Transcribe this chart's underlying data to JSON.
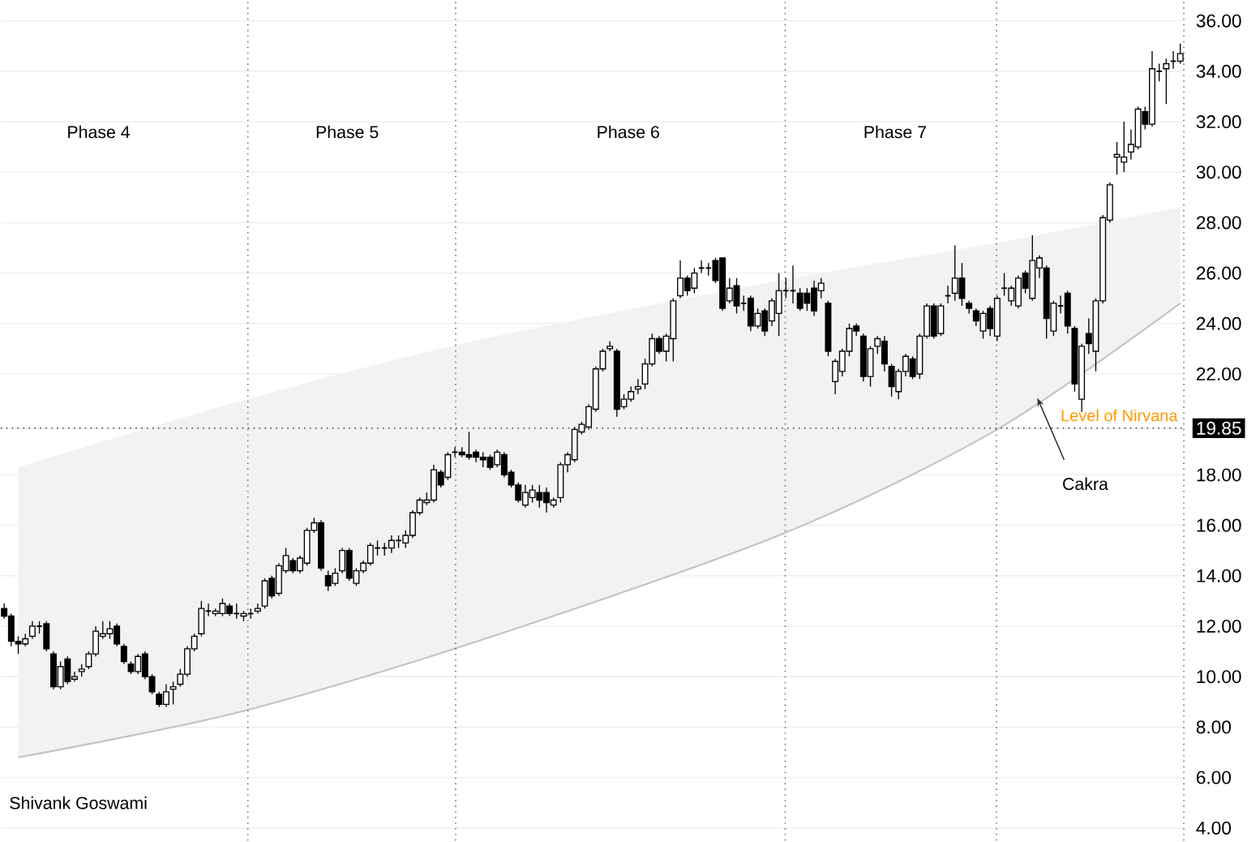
{
  "chart_data": {
    "type": "candlestick",
    "categories": [
      null,
      null,
      null,
      null,
      null,
      null,
      null,
      null,
      null,
      null,
      null,
      null,
      null,
      null,
      null,
      null,
      null,
      null,
      null,
      null,
      null,
      null,
      null,
      null,
      null,
      null,
      null,
      null,
      null,
      null,
      null,
      null,
      null,
      null,
      null,
      null,
      null,
      null,
      null,
      null,
      null,
      null,
      null,
      null,
      null,
      null,
      null,
      null,
      null,
      null,
      null,
      null,
      null,
      null,
      null,
      null,
      null,
      null,
      null,
      null,
      null,
      null,
      null,
      null,
      null,
      null,
      null,
      null,
      null,
      null,
      null,
      null,
      null,
      null,
      null,
      null,
      null,
      null,
      null,
      null,
      null,
      null,
      null,
      null,
      null,
      null,
      null,
      null,
      null,
      null,
      null,
      null,
      null,
      null,
      null,
      null,
      null,
      null,
      null,
      null,
      null,
      null,
      null,
      null,
      null,
      null,
      null,
      null,
      null,
      null,
      null,
      null,
      null,
      null,
      null,
      null,
      null,
      null,
      null,
      null,
      null,
      null,
      null,
      null,
      null,
      null,
      null,
      null,
      null,
      null,
      null,
      null,
      null,
      null,
      null,
      null,
      null,
      null,
      null,
      null,
      null,
      null,
      null,
      null,
      null,
      null,
      null,
      null,
      null,
      null,
      null,
      null,
      null,
      null,
      null,
      null,
      null,
      null,
      null,
      null,
      null,
      null,
      null,
      null,
      null,
      null,
      null,
      null
    ],
    "ohlc": [
      [
        12.7,
        12.9,
        12.3,
        12.4
      ],
      [
        12.4,
        12.5,
        11.2,
        11.4
      ],
      [
        11.4,
        11.6,
        10.9,
        11.3
      ],
      [
        11.3,
        11.7,
        11.2,
        11.5
      ],
      [
        11.6,
        12.2,
        11.5,
        12.0
      ],
      [
        12.0,
        12.2,
        11.7,
        12.0
      ],
      [
        12.1,
        12.2,
        11.0,
        11.1
      ],
      [
        10.9,
        11.0,
        9.5,
        9.6
      ],
      [
        9.6,
        10.6,
        9.5,
        10.4
      ],
      [
        10.7,
        10.8,
        9.7,
        9.8
      ],
      [
        9.9,
        10.2,
        9.8,
        10.0
      ],
      [
        10.2,
        10.5,
        10.0,
        10.3
      ],
      [
        10.4,
        11.0,
        10.3,
        10.9
      ],
      [
        10.9,
        12.0,
        10.8,
        11.8
      ],
      [
        11.6,
        12.2,
        11.5,
        11.7
      ],
      [
        11.7,
        12.2,
        11.5,
        11.9
      ],
      [
        12.0,
        12.1,
        11.2,
        11.3
      ],
      [
        11.2,
        11.3,
        10.5,
        10.6
      ],
      [
        10.5,
        10.6,
        10.1,
        10.2
      ],
      [
        10.2,
        10.9,
        10.1,
        10.8
      ],
      [
        10.9,
        11.0,
        9.9,
        10.0
      ],
      [
        10.0,
        10.1,
        9.3,
        9.4
      ],
      [
        9.3,
        9.4,
        8.8,
        8.9
      ],
      [
        8.9,
        9.7,
        8.8,
        9.4
      ],
      [
        9.5,
        9.8,
        8.9,
        9.6
      ],
      [
        9.7,
        10.3,
        9.6,
        10.1
      ],
      [
        10.1,
        11.2,
        10.0,
        11.1
      ],
      [
        11.1,
        11.7,
        11.0,
        11.6
      ],
      [
        11.7,
        13.0,
        11.6,
        12.7
      ],
      [
        12.6,
        12.9,
        12.4,
        12.6
      ],
      [
        12.5,
        12.7,
        12.4,
        12.6
      ],
      [
        12.5,
        13.1,
        12.4,
        12.9
      ],
      [
        12.8,
        12.9,
        12.4,
        12.5
      ],
      [
        12.5,
        12.9,
        12.3,
        12.5
      ],
      [
        12.4,
        12.6,
        12.2,
        12.5
      ],
      [
        12.5,
        12.7,
        12.3,
        12.5
      ],
      [
        12.6,
        12.9,
        12.5,
        12.7
      ],
      [
        12.8,
        13.9,
        12.7,
        13.8
      ],
      [
        13.9,
        14.0,
        13.1,
        13.2
      ],
      [
        13.3,
        14.5,
        13.2,
        14.4
      ],
      [
        14.2,
        15.1,
        14.1,
        14.8
      ],
      [
        14.6,
        14.7,
        14.1,
        14.2
      ],
      [
        14.2,
        14.8,
        14.1,
        14.7
      ],
      [
        14.5,
        15.9,
        14.4,
        15.8
      ],
      [
        15.8,
        16.3,
        15.7,
        16.1
      ],
      [
        16.1,
        16.2,
        14.2,
        14.3
      ],
      [
        14.0,
        14.2,
        13.4,
        13.6
      ],
      [
        13.7,
        14.3,
        13.6,
        14.1
      ],
      [
        14.2,
        15.1,
        14.1,
        15.0
      ],
      [
        15.0,
        15.1,
        13.8,
        13.9
      ],
      [
        13.7,
        14.3,
        13.6,
        14.2
      ],
      [
        14.2,
        14.6,
        14.1,
        14.5
      ],
      [
        14.5,
        15.3,
        14.4,
        15.2
      ],
      [
        15.1,
        15.4,
        14.8,
        15.1
      ],
      [
        15.1,
        15.3,
        14.8,
        15.1
      ],
      [
        15.1,
        15.6,
        14.9,
        15.4
      ],
      [
        15.4,
        15.6,
        15.1,
        15.4
      ],
      [
        15.3,
        15.8,
        15.1,
        15.6
      ],
      [
        15.6,
        16.6,
        15.5,
        16.5
      ],
      [
        16.5,
        17.1,
        16.4,
        17.0
      ],
      [
        16.9,
        17.3,
        16.8,
        17.0
      ],
      [
        17.0,
        18.4,
        16.9,
        18.2
      ],
      [
        18.1,
        18.2,
        17.5,
        17.6
      ],
      [
        17.9,
        18.9,
        17.8,
        18.8
      ],
      [
        18.9,
        19.1,
        18.7,
        18.9
      ],
      [
        18.9,
        19.1,
        18.7,
        18.8
      ],
      [
        18.8,
        19.7,
        18.6,
        18.7
      ],
      [
        18.9,
        19.0,
        18.5,
        18.7
      ],
      [
        18.7,
        18.9,
        18.3,
        18.6
      ],
      [
        18.7,
        18.8,
        18.2,
        18.3
      ],
      [
        18.4,
        19.0,
        18.3,
        18.9
      ],
      [
        18.8,
        18.9,
        17.9,
        18.0
      ],
      [
        18.1,
        18.2,
        17.5,
        17.6
      ],
      [
        17.6,
        17.7,
        16.9,
        17.0
      ],
      [
        16.8,
        17.6,
        16.7,
        17.3
      ],
      [
        17.1,
        17.6,
        16.9,
        17.4
      ],
      [
        17.3,
        17.6,
        16.7,
        17.0
      ],
      [
        17.3,
        17.5,
        16.5,
        16.9
      ],
      [
        16.8,
        17.1,
        16.7,
        17.0
      ],
      [
        17.1,
        18.5,
        16.9,
        18.4
      ],
      [
        18.4,
        18.9,
        18.1,
        18.8
      ],
      [
        18.6,
        19.9,
        18.5,
        19.8
      ],
      [
        19.7,
        20.1,
        19.6,
        20.0
      ],
      [
        19.9,
        20.8,
        19.8,
        20.7
      ],
      [
        20.6,
        22.3,
        20.5,
        22.2
      ],
      [
        22.2,
        23.0,
        22.1,
        22.9
      ],
      [
        23.0,
        23.3,
        22.9,
        23.1
      ],
      [
        22.9,
        23.0,
        20.3,
        20.6
      ],
      [
        20.7,
        21.2,
        20.6,
        21.0
      ],
      [
        21.0,
        21.5,
        20.9,
        21.3
      ],
      [
        21.4,
        21.8,
        21.2,
        21.5
      ],
      [
        21.6,
        22.6,
        21.4,
        22.4
      ],
      [
        22.4,
        23.6,
        22.3,
        23.4
      ],
      [
        23.4,
        23.5,
        22.8,
        22.9
      ],
      [
        22.9,
        23.6,
        22.5,
        23.5
      ],
      [
        23.4,
        25.0,
        22.5,
        24.9
      ],
      [
        25.1,
        26.5,
        25.0,
        25.8
      ],
      [
        25.8,
        25.9,
        25.1,
        25.3
      ],
      [
        25.4,
        26.2,
        25.2,
        26.0
      ],
      [
        26.2,
        26.5,
        26.0,
        26.2
      ],
      [
        26.2,
        26.4,
        25.9,
        26.2
      ],
      [
        26.5,
        26.6,
        25.6,
        25.7
      ],
      [
        26.6,
        26.6,
        24.5,
        24.6
      ],
      [
        24.9,
        25.8,
        24.8,
        25.4
      ],
      [
        25.5,
        25.8,
        24.4,
        24.7
      ],
      [
        24.8,
        25.1,
        24.5,
        24.8
      ],
      [
        25.0,
        25.1,
        23.7,
        23.9
      ],
      [
        23.9,
        24.6,
        23.8,
        24.4
      ],
      [
        24.5,
        24.6,
        23.5,
        23.7
      ],
      [
        24.1,
        25.0,
        23.9,
        24.9
      ],
      [
        24.4,
        26.0,
        23.5,
        25.3
      ],
      [
        25.3,
        25.8,
        25.0,
        25.3
      ],
      [
        25.3,
        26.3,
        24.8,
        25.3
      ],
      [
        25.2,
        25.4,
        24.5,
        24.6
      ],
      [
        25.2,
        25.4,
        24.5,
        24.8
      ],
      [
        25.4,
        25.7,
        24.3,
        24.5
      ],
      [
        25.3,
        25.8,
        25.0,
        25.6
      ],
      [
        24.8,
        24.9,
        22.7,
        22.9
      ],
      [
        21.7,
        22.6,
        21.2,
        22.5
      ],
      [
        22.1,
        23.0,
        21.9,
        22.9
      ],
      [
        22.9,
        24.0,
        22.7,
        23.8
      ],
      [
        23.9,
        24.0,
        23.5,
        23.7
      ],
      [
        23.5,
        23.6,
        21.7,
        21.9
      ],
      [
        21.9,
        23.1,
        21.5,
        23.0
      ],
      [
        23.1,
        23.5,
        22.8,
        23.4
      ],
      [
        23.3,
        23.5,
        22.1,
        22.4
      ],
      [
        22.3,
        22.4,
        21.1,
        21.5
      ],
      [
        21.3,
        22.2,
        21.0,
        22.1
      ],
      [
        22.1,
        22.8,
        21.9,
        22.7
      ],
      [
        22.6,
        22.7,
        21.8,
        21.9
      ],
      [
        22.0,
        23.6,
        21.8,
        23.5
      ],
      [
        23.5,
        24.8,
        23.4,
        24.7
      ],
      [
        24.7,
        24.8,
        23.4,
        23.5
      ],
      [
        23.6,
        24.8,
        23.5,
        24.7
      ],
      [
        25.1,
        25.5,
        24.8,
        25.1
      ],
      [
        25.2,
        27.1,
        24.9,
        25.8
      ],
      [
        25.8,
        26.4,
        24.7,
        25.0
      ],
      [
        24.8,
        24.9,
        24.4,
        24.6
      ],
      [
        24.5,
        24.6,
        23.9,
        24.1
      ],
      [
        23.7,
        24.5,
        23.4,
        24.4
      ],
      [
        24.6,
        24.7,
        23.5,
        23.8
      ],
      [
        23.5,
        25.1,
        23.3,
        25.0
      ],
      [
        25.4,
        26.0,
        25.1,
        25.4
      ],
      [
        24.9,
        25.5,
        24.7,
        25.4
      ],
      [
        24.7,
        25.9,
        24.6,
        25.8
      ],
      [
        26.0,
        26.1,
        25.2,
        25.4
      ],
      [
        25.0,
        27.5,
        24.9,
        26.5
      ],
      [
        26.2,
        26.7,
        25.8,
        26.6
      ],
      [
        26.2,
        26.3,
        23.4,
        24.2
      ],
      [
        23.7,
        24.9,
        23.5,
        24.8
      ],
      [
        24.7,
        25.1,
        24.4,
        24.7
      ],
      [
        25.2,
        25.3,
        23.6,
        23.9
      ],
      [
        23.8,
        23.9,
        21.3,
        21.6
      ],
      [
        21.0,
        23.2,
        20.5,
        23.1
      ],
      [
        23.6,
        24.2,
        22.8,
        23.2
      ],
      [
        22.9,
        25.0,
        22.1,
        24.9
      ],
      [
        24.9,
        28.3,
        24.8,
        28.2
      ],
      [
        28.1,
        29.6,
        28.0,
        29.5
      ],
      [
        30.6,
        31.2,
        29.9,
        30.7
      ],
      [
        30.4,
        32.0,
        30.0,
        30.6
      ],
      [
        30.8,
        31.7,
        30.5,
        31.1
      ],
      [
        31.0,
        32.6,
        30.9,
        32.5
      ],
      [
        32.4,
        32.6,
        31.7,
        31.9
      ],
      [
        31.9,
        34.8,
        31.8,
        34.1
      ],
      [
        34.0,
        34.3,
        33.6,
        34.0
      ],
      [
        34.1,
        34.5,
        32.7,
        34.3
      ],
      [
        34.4,
        34.8,
        34.1,
        34.4
      ],
      [
        34.4,
        35.1,
        34.3,
        34.7
      ]
    ],
    "series": [
      {
        "type": "line",
        "color": "#c4c4c4",
        "values": [
          null,
          null,
          6.8,
          null,
          null,
          null,
          null,
          null,
          null,
          null,
          null,
          null,
          null,
          null,
          null,
          null,
          null,
          null,
          null,
          null,
          null,
          null,
          null,
          null,
          null,
          null,
          null,
          null,
          null,
          null,
          null,
          null,
          8.5,
          null,
          null,
          null,
          null,
          null,
          null,
          null,
          null,
          null,
          null,
          null,
          null,
          null,
          null,
          null,
          null,
          null,
          null,
          null,
          null,
          null,
          null,
          null,
          null,
          null,
          null,
          null,
          null,
          null,
          null,
          null,
          null,
          11.2,
          null,
          null,
          null,
          null,
          null,
          null,
          null,
          null,
          null,
          null,
          null,
          null,
          null,
          null,
          null,
          null,
          null,
          null,
          null,
          null,
          null,
          null,
          null,
          null,
          null,
          null,
          null,
          null,
          null,
          null,
          null,
          null,
          null,
          null,
          null,
          null,
          null,
          null,
          null,
          null,
          null,
          null,
          null,
          null,
          15.6,
          null,
          null,
          null,
          null,
          null,
          null,
          null,
          null,
          null,
          null,
          null,
          null,
          null,
          null,
          null,
          null,
          null,
          null,
          null,
          null,
          null,
          null,
          null,
          null,
          null,
          null,
          null,
          null,
          null,
          null,
          19.8,
          null,
          null,
          null,
          null,
          null,
          null,
          null,
          null,
          null,
          null,
          null,
          null,
          null,
          null,
          null,
          null,
          null,
          null,
          null,
          null,
          null,
          null,
          null,
          null,
          null,
          24.8
        ],
        "lower": [
          null,
          null,
          6.8,
          null,
          null,
          null,
          null,
          null,
          null,
          null,
          null,
          null,
          null,
          null,
          null,
          null,
          null,
          null,
          null,
          null,
          null,
          null,
          null,
          null,
          null,
          null,
          null,
          null,
          null,
          null,
          null,
          null,
          8.5,
          null,
          null,
          null,
          null,
          null,
          null,
          null,
          null,
          null,
          null,
          null,
          null,
          null,
          null,
          null,
          null,
          null,
          null,
          null,
          null,
          null,
          null,
          null,
          null,
          null,
          null,
          null,
          null,
          null,
          null,
          null,
          null,
          11.2,
          null,
          null,
          null,
          null,
          null,
          null,
          null,
          null,
          null,
          null,
          null,
          null,
          null,
          null,
          null,
          null,
          null,
          null,
          null,
          null,
          null,
          null,
          null,
          null,
          null,
          null,
          null,
          null,
          null,
          null,
          null,
          null,
          null,
          null,
          null,
          null,
          null,
          null,
          null,
          null,
          null,
          null,
          null,
          null,
          15.6,
          null,
          null,
          null,
          null,
          null,
          null,
          null,
          null,
          null,
          null,
          null,
          null,
          null,
          null,
          null,
          null,
          null,
          null,
          null,
          null,
          null,
          null,
          null,
          null,
          null,
          null,
          null,
          null,
          null,
          null,
          19.8,
          null,
          null,
          null,
          null,
          null,
          null,
          null,
          null,
          null,
          null,
          null,
          null,
          null,
          null,
          null,
          null,
          null,
          null,
          null,
          null,
          null,
          null,
          null,
          null,
          null,
          24.8
        ],
        "upper": [
          null,
          null,
          18.3,
          null,
          null,
          null,
          null,
          null,
          null,
          null,
          null,
          null,
          null,
          null,
          null,
          null,
          null,
          null,
          null,
          null,
          null,
          null,
          null,
          null,
          null,
          null,
          null,
          null,
          null,
          null,
          null,
          null,
          20.8,
          null,
          null,
          null,
          null,
          null,
          null,
          null,
          null,
          null,
          null,
          null,
          null,
          null,
          null,
          null,
          null,
          null,
          null,
          null,
          null,
          null,
          null,
          null,
          null,
          null,
          null,
          null,
          null,
          null,
          null,
          null,
          null,
          23.2,
          null,
          null,
          null,
          null,
          null,
          null,
          null,
          null,
          null,
          null,
          null,
          null,
          null,
          null,
          null,
          null,
          null,
          null,
          null,
          null,
          null,
          null,
          null,
          null,
          null,
          null,
          null,
          null,
          null,
          null,
          null,
          null,
          null,
          null,
          null,
          null,
          null,
          null,
          null,
          null,
          null,
          null,
          null,
          null,
          25.7,
          null,
          null,
          null,
          null,
          null,
          null,
          null,
          null,
          null,
          null,
          null,
          null,
          null,
          null,
          null,
          null,
          null,
          null,
          null,
          null,
          null,
          null,
          null,
          null,
          null,
          null,
          null,
          null,
          null,
          null,
          27.2,
          null,
          null,
          null,
          null,
          null,
          null,
          null,
          null,
          null,
          null,
          null,
          null,
          null,
          null,
          null,
          null,
          null,
          null,
          null,
          null,
          null,
          null,
          null,
          null,
          null,
          28.6
        ]
      }
    ],
    "ylim": [
      3.5,
      36.8
    ],
    "yticks": [
      {
        "value": 4,
        "label": "4.00"
      },
      {
        "value": 6,
        "label": "6.00"
      },
      {
        "value": 8,
        "label": "8.00"
      },
      {
        "value": 10,
        "label": "10.00"
      },
      {
        "value": 12,
        "label": "12.00"
      },
      {
        "value": 14,
        "label": "14.00"
      },
      {
        "value": 16,
        "label": "16.00"
      },
      {
        "value": 18,
        "label": "18.00"
      },
      {
        "value": 19.85,
        "label": "19.85"
      },
      {
        "value": 22,
        "label": "22.00"
      },
      {
        "value": 24,
        "label": "24.00"
      },
      {
        "value": 26,
        "label": "26.00"
      },
      {
        "value": 28,
        "label": "28.00"
      },
      {
        "value": 30,
        "label": "30.00"
      },
      {
        "value": 32,
        "label": "32.00"
      },
      {
        "value": 34,
        "label": "34.00"
      },
      {
        "value": 36,
        "label": "36.00"
      }
    ],
    "grid": "y",
    "tick_labels": "y",
    "ref_lines": [
      {
        "axis": "y",
        "value": 19.85,
        "label": "Level of Nirvana",
        "color": "#555555",
        "line_style": "dotted"
      }
    ],
    "annotations": [
      "Phase 4",
      "Phase 5",
      "Phase 6",
      "Phase 7",
      "Cakra",
      "Shivank Goswami"
    ]
  }
}
